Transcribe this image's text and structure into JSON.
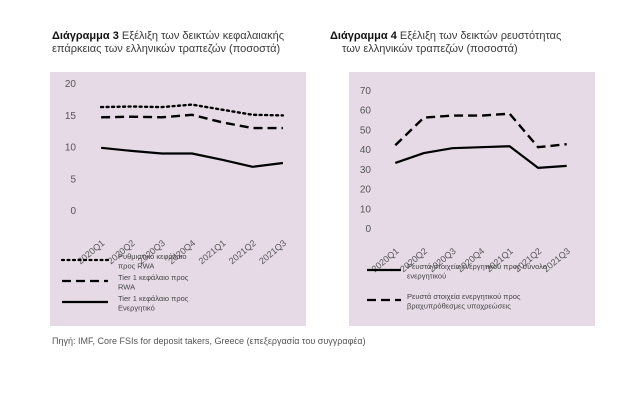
{
  "left": {
    "title_bold": "Διάγραμμα 3",
    "title_rest_1": " Εξέλιξη των δεικτών κεφαλαιακής",
    "title_line2": "επάρκειας των ελληνικών τραπεζών (ποσοστά)"
  },
  "right": {
    "title_bold": "Διάγραμμα 4",
    "title_rest_1": " Εξέλιξη των δεικτών ρευστότητας",
    "title_line2": "των ελληνικών τραπεζών (ποσοστά)"
  },
  "source": "Πηγή: IMF, Core FSIs for deposit takers, Greece (επεξεργασία του συγγραφέα)",
  "chart_data": [
    {
      "type": "line",
      "title": "",
      "xlabel": "",
      "ylabel": "",
      "ylim": [
        0,
        20
      ],
      "yticks": [
        0,
        5,
        10,
        15,
        20
      ],
      "grid": false,
      "legend_position": "bottom",
      "categories": [
        "2020Q1",
        "2020Q2",
        "2020Q3",
        "2020Q4",
        "2021Q1",
        "2021Q2",
        "2021Q3"
      ],
      "series": [
        {
          "name": "Ρυθμιστικό κεφάλαιο προς RWA",
          "style": "dotted",
          "values": [
            16.2,
            16.3,
            16.2,
            16.6,
            15.8,
            15.0,
            14.9
          ]
        },
        {
          "name": "Tier 1 κεφάλαιο προς RWA",
          "style": "dashed",
          "values": [
            14.6,
            14.7,
            14.6,
            15.0,
            13.8,
            12.9,
            12.9
          ]
        },
        {
          "name": "Tier 1 κεφάλαιο προς Ενεργητικό",
          "style": "solid",
          "values": [
            9.8,
            9.3,
            8.9,
            8.9,
            7.9,
            6.8,
            7.4
          ]
        }
      ],
      "legend_lines": [
        [
          "Ρυθμιστικό κεφάλαιο",
          "προς RWA"
        ],
        [
          "Tier 1 κεφάλαιο προς",
          "RWA"
        ],
        [
          "Tier 1 κεφάλαιο προς",
          "Ενεργητικό"
        ]
      ]
    },
    {
      "type": "line",
      "title": "",
      "xlabel": "",
      "ylabel": "",
      "ylim": [
        0,
        70
      ],
      "yticks": [
        0,
        10,
        20,
        30,
        40,
        50,
        60,
        70
      ],
      "grid": false,
      "legend_position": "bottom",
      "categories": [
        "2020Q1",
        "2020Q2",
        "2020Q3",
        "2020Q4",
        "2021Q1",
        "2021Q2",
        "2021Q3"
      ],
      "series": [
        {
          "name": "Ρευστά στοιχεία ενεργητικού προς σύνολο ενεργητικού",
          "style": "solid",
          "values": [
            33,
            38,
            40.5,
            41,
            41.5,
            30.5,
            31.5
          ]
        },
        {
          "name": "Ρευστά στοιχεία ενεργητικού προς βραχυπρόθεσμες υποχρεώσεις",
          "style": "dashed",
          "values": [
            42,
            56,
            57,
            57,
            58,
            41,
            42.5
          ]
        }
      ],
      "legend_lines": [
        [
          "Ρευστά στοιχεία ενεργητικού προς σύνολο",
          "ενεργητικού"
        ],
        [
          "Ρευστά στοιχεία ενεργητικού προς",
          "βραχυπρόθεσμες υποχρεώσεις"
        ]
      ]
    }
  ],
  "colors": {
    "panel": "#e6dae7",
    "line": "#000000"
  }
}
